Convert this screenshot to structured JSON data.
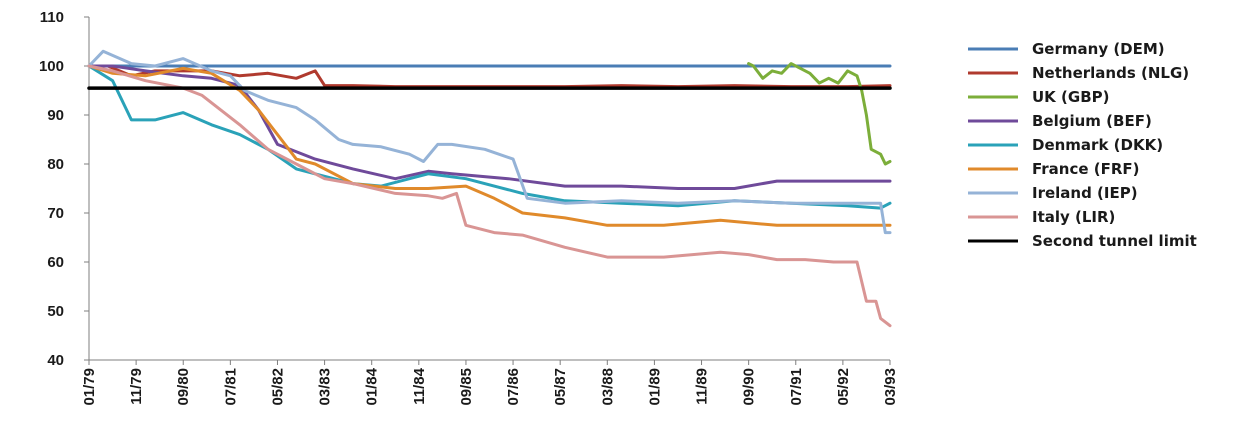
{
  "chart_data": {
    "type": "line",
    "title": "",
    "xlabel": "",
    "ylabel": "",
    "ylim": [
      40,
      110
    ],
    "y_ticks": [
      40,
      50,
      60,
      70,
      80,
      90,
      100,
      110
    ],
    "x_range": [
      "1979-01",
      "1993-03"
    ],
    "x_tick_labels": [
      "01/79",
      "11/79",
      "09/80",
      "07/81",
      "05/82",
      "03/83",
      "01/84",
      "11/84",
      "09/85",
      "07/86",
      "05/87",
      "03/88",
      "01/89",
      "11/89",
      "09/90",
      "07/91",
      "05/92",
      "03/93"
    ],
    "x_ticks": [
      "1979-01",
      "1979-11",
      "1980-09",
      "1981-07",
      "1982-05",
      "1983-03",
      "1984-01",
      "1984-11",
      "1985-09",
      "1986-07",
      "1987-05",
      "1988-03",
      "1989-01",
      "1989-11",
      "1990-09",
      "1991-07",
      "1992-05",
      "1993-03"
    ],
    "grid": false,
    "legend_position": "right",
    "series": [
      {
        "name": "Germany (DEM)",
        "color": "#4a7db5",
        "x": [
          "1979-01",
          "1993-03"
        ],
        "values": [
          100,
          100
        ]
      },
      {
        "name": "Netherlands (NLG)",
        "color": "#b03a2e",
        "x": [
          "1979-01",
          "1979-05",
          "1979-10",
          "1980-03",
          "1980-09",
          "1981-03",
          "1981-09",
          "1982-03",
          "1982-09",
          "1983-01",
          "1983-03",
          "1983-09",
          "1984-06",
          "1985-06",
          "1986-06",
          "1987-06",
          "1988-06",
          "1989-06",
          "1990-06",
          "1991-06",
          "1992-06",
          "1993-03"
        ],
        "values": [
          100,
          100,
          98,
          99,
          99,
          99,
          98,
          98.5,
          97.5,
          99,
          96,
          96,
          95.8,
          95.8,
          95.8,
          95.8,
          96,
          95.8,
          96,
          95.8,
          95.8,
          96
        ]
      },
      {
        "name": "UK (GBP)",
        "color": "#7cae3a",
        "x": [
          "1990-09",
          "1990-10",
          "1990-12",
          "1991-02",
          "1991-04",
          "1991-06",
          "1991-08",
          "1991-10",
          "1991-12",
          "1992-02",
          "1992-04",
          "1992-06",
          "1992-08",
          "1992-09",
          "1992-10",
          "1992-11",
          "1993-01",
          "1993-02",
          "1993-03"
        ],
        "values": [
          100.5,
          100,
          97.5,
          99,
          98.5,
          100.5,
          99.5,
          98.5,
          96.5,
          97.5,
          96.5,
          99,
          98,
          95,
          90,
          83,
          82,
          80,
          80.5
        ]
      },
      {
        "name": "Belgium (BEF)",
        "color": "#6f4a9a",
        "x": [
          "1979-01",
          "1979-06",
          "1980-01",
          "1980-09",
          "1981-03",
          "1981-09",
          "1982-01",
          "1982-05",
          "1983-01",
          "1983-09",
          "1984-06",
          "1985-01",
          "1985-06",
          "1986-06",
          "1987-06",
          "1988-06",
          "1989-06",
          "1990-06",
          "1991-03",
          "1992-03",
          "1993-03"
        ],
        "values": [
          100,
          100,
          99,
          98,
          97.5,
          96,
          91,
          84,
          81,
          79,
          77,
          78.5,
          78,
          77,
          75.5,
          75.5,
          75,
          75,
          76.5,
          76.5,
          76.5
        ]
      },
      {
        "name": "Denmark (DKK)",
        "color": "#2aa2b8",
        "x": [
          "1979-01",
          "1979-06",
          "1979-10",
          "1980-03",
          "1980-09",
          "1981-03",
          "1981-09",
          "1982-03",
          "1982-09",
          "1983-03",
          "1983-09",
          "1984-03",
          "1985-01",
          "1985-09",
          "1986-09",
          "1987-06",
          "1988-06",
          "1989-06",
          "1990-06",
          "1991-06",
          "1992-06",
          "1993-01",
          "1993-03"
        ],
        "values": [
          100,
          97,
          89,
          89,
          90.5,
          88,
          86,
          83,
          79,
          77.5,
          76,
          75.5,
          78,
          77,
          74,
          72.5,
          72,
          71.5,
          72.5,
          72,
          71.5,
          71,
          72
        ]
      },
      {
        "name": "France (FRF)",
        "color": "#e08a2b",
        "x": [
          "1979-01",
          "1979-06",
          "1980-01",
          "1980-09",
          "1981-03",
          "1981-09",
          "1982-01",
          "1982-05",
          "1982-09",
          "1983-01",
          "1983-09",
          "1984-06",
          "1985-01",
          "1985-09",
          "1986-03",
          "1986-09",
          "1987-06",
          "1988-03",
          "1989-03",
          "1990-03",
          "1991-03",
          "1992-03",
          "1993-03"
        ],
        "values": [
          100,
          98.5,
          98,
          99.5,
          98.5,
          95,
          91,
          86,
          81,
          80,
          76,
          75,
          75,
          75.5,
          73,
          70,
          69,
          67.5,
          67.5,
          68.5,
          67.5,
          67.5,
          67.5
        ]
      },
      {
        "name": "Ireland (IEP)",
        "color": "#95b3d7",
        "x": [
          "1979-01",
          "1979-04",
          "1979-10",
          "1980-03",
          "1980-09",
          "1981-03",
          "1981-07",
          "1981-10",
          "1982-03",
          "1982-09",
          "1983-01",
          "1983-06",
          "1983-09",
          "1984-03",
          "1984-09",
          "1984-12",
          "1985-03",
          "1985-06",
          "1986-01",
          "1986-07",
          "1986-10",
          "1987-06",
          "1988-06",
          "1989-06",
          "1990-06",
          "1991-06",
          "1992-06",
          "1993-01",
          "1993-02",
          "1993-03"
        ],
        "values": [
          100,
          103,
          100.5,
          100,
          101.5,
          99,
          98,
          95,
          93,
          91.5,
          89,
          85,
          84,
          83.5,
          82,
          80.5,
          84,
          84,
          83,
          81,
          73,
          72,
          72.5,
          72,
          72.5,
          72,
          72,
          72,
          66,
          66
        ]
      },
      {
        "name": "Italy (LIR)",
        "color": "#d99594",
        "x": [
          "1979-01",
          "1979-06",
          "1980-01",
          "1980-09",
          "1981-01",
          "1981-09",
          "1982-03",
          "1982-09",
          "1983-03",
          "1983-09",
          "1984-06",
          "1985-01",
          "1985-04",
          "1985-07",
          "1985-09",
          "1986-03",
          "1986-09",
          "1987-06",
          "1988-03",
          "1989-03",
          "1990-03",
          "1990-09",
          "1991-03",
          "1991-09",
          "1992-03",
          "1992-08",
          "1992-10",
          "1992-12",
          "1993-01",
          "1993-03"
        ],
        "values": [
          100,
          99,
          97,
          95.5,
          94,
          88,
          83,
          80,
          77,
          76,
          74,
          73.5,
          73,
          74,
          67.5,
          66,
          65.5,
          63,
          61,
          61,
          62,
          61.5,
          60.5,
          60.5,
          60,
          60,
          52,
          52,
          48.5,
          47
        ]
      },
      {
        "name": "Second tunnel limit",
        "color": "#000000",
        "x": [
          "1979-01",
          "1993-03"
        ],
        "values": [
          95.5,
          95.5
        ]
      }
    ]
  }
}
